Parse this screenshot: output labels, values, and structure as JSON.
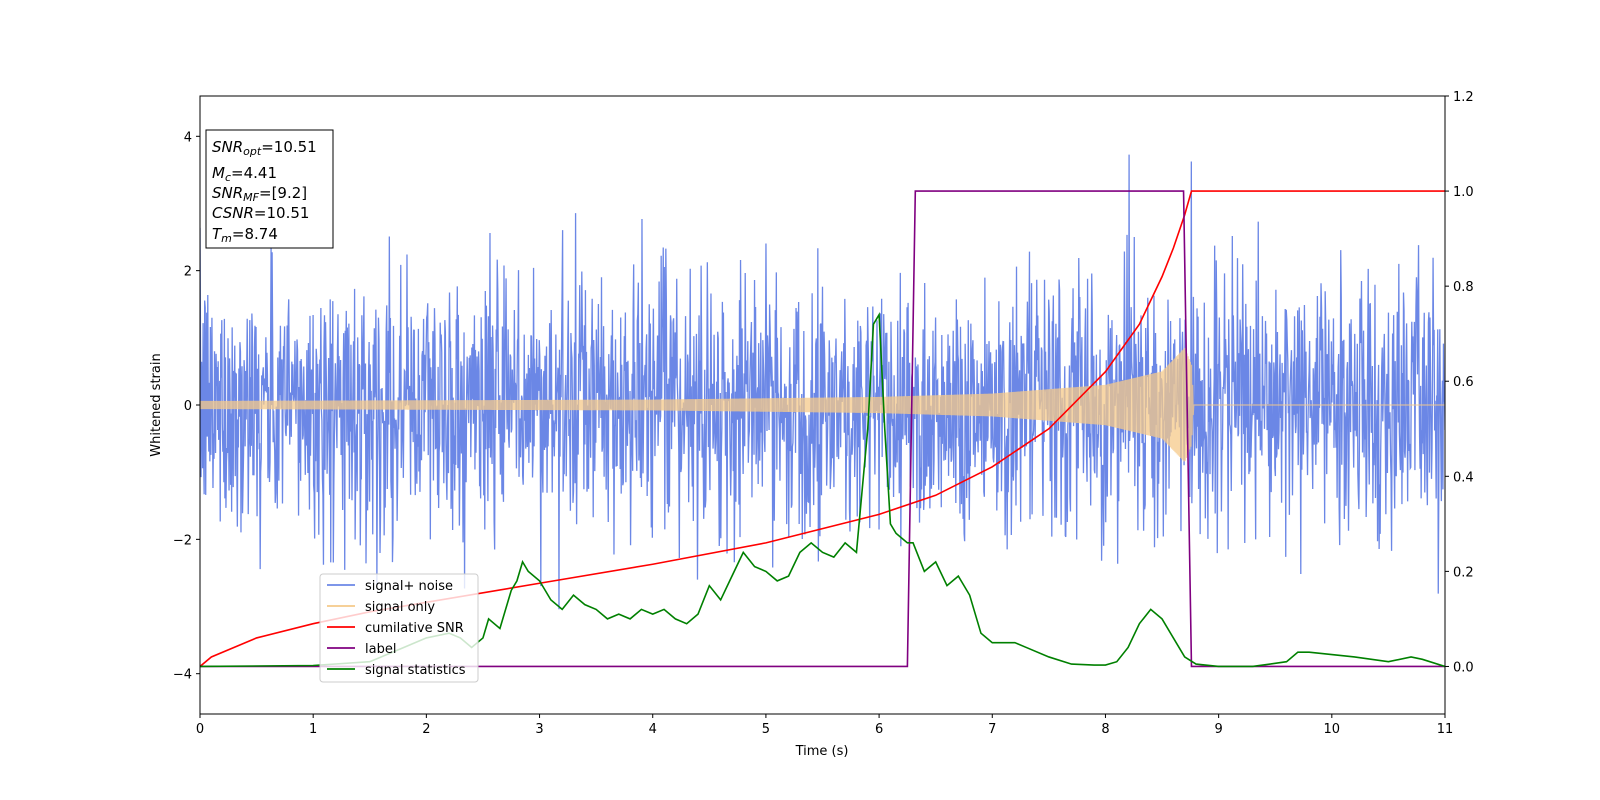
{
  "chart_data": {
    "type": "line",
    "title": "",
    "xlabel": "Time (s)",
    "ylabel": "Whitened strain",
    "ylabel_right": "",
    "xlim": [
      0,
      11
    ],
    "ylim": [
      -4.6,
      4.6
    ],
    "ylim_right": [
      -0.1,
      1.2
    ],
    "grid": false,
    "legend_position": "lower-left",
    "x_ticks": [
      "0",
      "1",
      "2",
      "3",
      "4",
      "5",
      "6",
      "7",
      "8",
      "9",
      "10",
      "11"
    ],
    "y_ticks": [
      "−4",
      "−2",
      "0",
      "2",
      "4"
    ],
    "y_ticks_right": [
      "0.0",
      "0.2",
      "0.4",
      "0.6",
      "0.8",
      "1.0",
      "1.2"
    ],
    "x_tick_values": [
      0,
      1,
      2,
      3,
      4,
      5,
      6,
      7,
      8,
      9,
      10,
      11
    ],
    "y_tick_values": [
      -4,
      -2,
      0,
      2,
      4
    ],
    "y_tick_values_right": [
      0.0,
      0.2,
      0.4,
      0.6,
      0.8,
      1.0,
      1.2
    ],
    "series": [
      {
        "name": "signal+ noise",
        "axis": "left",
        "color": "#6b87e6",
        "noise_std": 0.95,
        "description_values": "gaussian noise band approx -2.6..2.6 with spikes to ~4"
      },
      {
        "name": "signal only",
        "axis": "left",
        "color": "#f5c98a",
        "envelope_x": [
          0,
          2,
          4,
          6,
          7,
          8,
          8.5,
          8.7,
          8.76,
          8.78,
          11
        ],
        "envelope_y": [
          0.06,
          0.07,
          0.08,
          0.12,
          0.17,
          0.3,
          0.5,
          0.85,
          0.6,
          0.0,
          0.0
        ]
      },
      {
        "name": "cumilative SNR",
        "axis": "right",
        "color": "#ff0000",
        "x": [
          0,
          0.1,
          0.5,
          1,
          1.5,
          2,
          3,
          4,
          5,
          6,
          6.5,
          7,
          7.5,
          8,
          8.3,
          8.5,
          8.6,
          8.7,
          8.76,
          9,
          10,
          11
        ],
        "y": [
          0.0,
          0.02,
          0.06,
          0.09,
          0.115,
          0.135,
          0.175,
          0.215,
          0.26,
          0.32,
          0.36,
          0.42,
          0.5,
          0.62,
          0.72,
          0.82,
          0.88,
          0.95,
          1.0,
          1.0,
          1.0,
          1.0
        ]
      },
      {
        "name": "label",
        "axis": "right",
        "color": "#800080",
        "x": [
          0,
          6.25,
          6.32,
          8.69,
          8.76,
          11
        ],
        "y": [
          0,
          0,
          1,
          1,
          0,
          0
        ]
      },
      {
        "name": "signal statistics",
        "axis": "right",
        "color": "#008000",
        "x": [
          0,
          1,
          1.5,
          1.8,
          2.0,
          2.2,
          2.3,
          2.4,
          2.5,
          2.55,
          2.65,
          2.75,
          2.8,
          2.85,
          2.9,
          3.0,
          3.1,
          3.2,
          3.3,
          3.4,
          3.5,
          3.6,
          3.7,
          3.8,
          3.9,
          4.0,
          4.1,
          4.2,
          4.3,
          4.4,
          4.5,
          4.6,
          4.7,
          4.8,
          4.9,
          5.0,
          5.1,
          5.2,
          5.3,
          5.4,
          5.5,
          5.6,
          5.7,
          5.8,
          5.9,
          5.95,
          6.0,
          6.05,
          6.1,
          6.15,
          6.2,
          6.25,
          6.3,
          6.4,
          6.5,
          6.6,
          6.7,
          6.8,
          6.9,
          7.0,
          7.1,
          7.2,
          7.3,
          7.5,
          7.7,
          7.9,
          8.0,
          8.1,
          8.2,
          8.3,
          8.4,
          8.5,
          8.6,
          8.7,
          8.8,
          9.0,
          9.3,
          9.6,
          9.7,
          9.8,
          10.0,
          10.2,
          10.5,
          10.7,
          10.8,
          11.0
        ],
        "y": [
          0.0,
          0.002,
          0.01,
          0.04,
          0.06,
          0.07,
          0.06,
          0.04,
          0.06,
          0.1,
          0.08,
          0.16,
          0.18,
          0.22,
          0.2,
          0.18,
          0.14,
          0.12,
          0.15,
          0.13,
          0.12,
          0.1,
          0.11,
          0.1,
          0.12,
          0.11,
          0.12,
          0.1,
          0.09,
          0.11,
          0.17,
          0.14,
          0.19,
          0.24,
          0.21,
          0.2,
          0.18,
          0.19,
          0.24,
          0.26,
          0.24,
          0.23,
          0.26,
          0.24,
          0.5,
          0.72,
          0.74,
          0.5,
          0.3,
          0.28,
          0.27,
          0.26,
          0.26,
          0.2,
          0.22,
          0.17,
          0.19,
          0.15,
          0.07,
          0.05,
          0.05,
          0.05,
          0.04,
          0.02,
          0.005,
          0.003,
          0.003,
          0.01,
          0.04,
          0.09,
          0.12,
          0.1,
          0.06,
          0.02,
          0.005,
          0.0,
          0.0,
          0.01,
          0.03,
          0.03,
          0.025,
          0.02,
          0.01,
          0.02,
          0.015,
          0.0
        ]
      }
    ]
  },
  "info_box": {
    "snr_opt_sym": "SNR",
    "snr_opt_sub": "opt",
    "snr_opt_val": "=10.51",
    "mc_sym": "M",
    "mc_sub": "c",
    "mc_val": "=4.41",
    "snr_mf_sym": "SNR",
    "snr_mf_sub": "MF",
    "snr_mf_val": "=[9.2]",
    "csnr_sym": "CSNR",
    "csnr_val": "=10.51",
    "tm_sym": "T",
    "tm_sub": "m",
    "tm_val": "=8.74"
  },
  "legend": [
    {
      "label": "signal+ noise",
      "color": "#6b87e6"
    },
    {
      "label": "signal only",
      "color": "#f5c98a"
    },
    {
      "label": "cumilative SNR",
      "color": "#ff0000"
    },
    {
      "label": "label",
      "color": "#800080"
    },
    {
      "label": "signal statistics",
      "color": "#008000"
    }
  ]
}
